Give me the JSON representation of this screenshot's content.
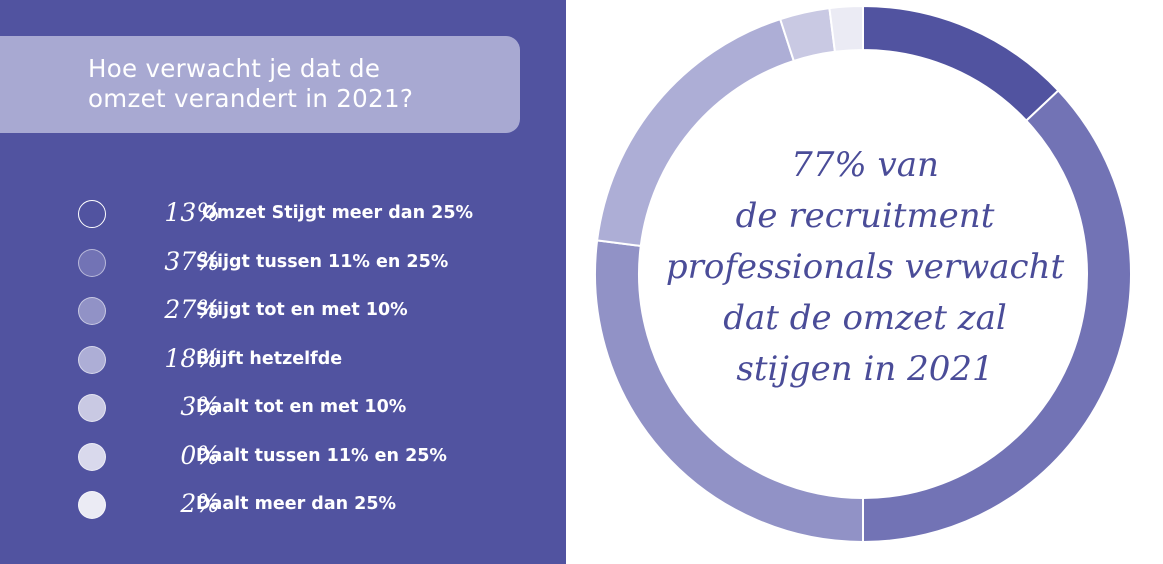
{
  "title_lines": [
    "Hoe verwacht je dat de",
    "omzet verandert in 2021?"
  ],
  "center_lines": [
    "77% van",
    "de recruitment",
    "professionals verwacht",
    "dat de omzet zal",
    "stijgen in 2021"
  ],
  "chart_data": {
    "type": "pie",
    "donut": true,
    "title": "Hoe verwacht je dat de omzet verandert in 2021?",
    "categories": [
      "Omzet Stijgt meer dan 25%",
      "Stijgt tussen 11% en 25%",
      "Stijgt tot en met 10%",
      "Blijft hetzelfde",
      "Daalt tot en met 10%",
      "Daalt tussen 11% en 25%",
      "Daalt meer dan 25%"
    ],
    "values": [
      13,
      37,
      27,
      18,
      3,
      0,
      2
    ],
    "value_labels": [
      "13%",
      "37%",
      "27%",
      "18%",
      "3%",
      "0%",
      "2%"
    ],
    "colors": [
      "#5153a0",
      "#7273b5",
      "#9192c6",
      "#adaed6",
      "#c9c9e3",
      "#d9d9ec",
      "#ebebf4"
    ],
    "legend_position": "left"
  }
}
